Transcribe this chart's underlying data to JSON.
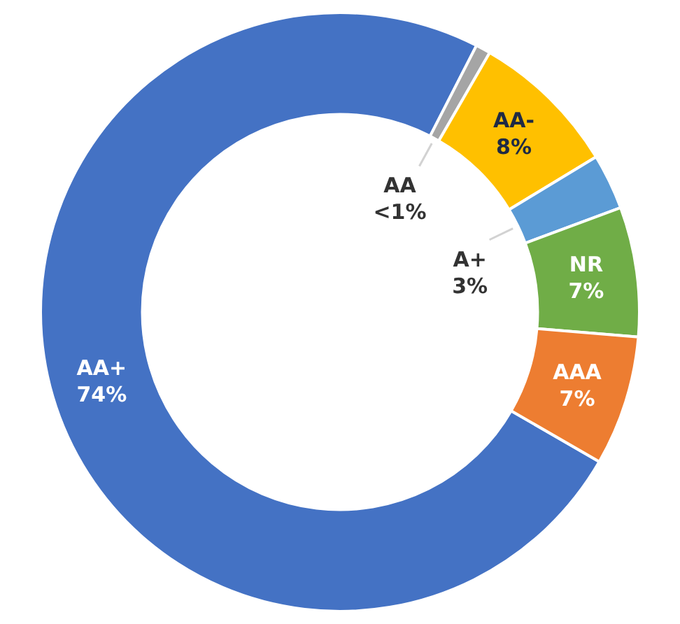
{
  "chart_data": {
    "type": "donut",
    "categories": [
      "AA+",
      "AA",
      "AA-",
      "A+",
      "NR",
      "AAA"
    ],
    "values": [
      74.2,
      0.8,
      8,
      3,
      7,
      7
    ],
    "value_labels": [
      "74%",
      "<1%",
      "8%",
      "3%",
      "7%",
      "7%"
    ],
    "colors": [
      "#4472c4",
      "#a5a5a5",
      "#ffc000",
      "#5b9bd5",
      "#70ad47",
      "#ed7d31"
    ],
    "legend": false
  }
}
